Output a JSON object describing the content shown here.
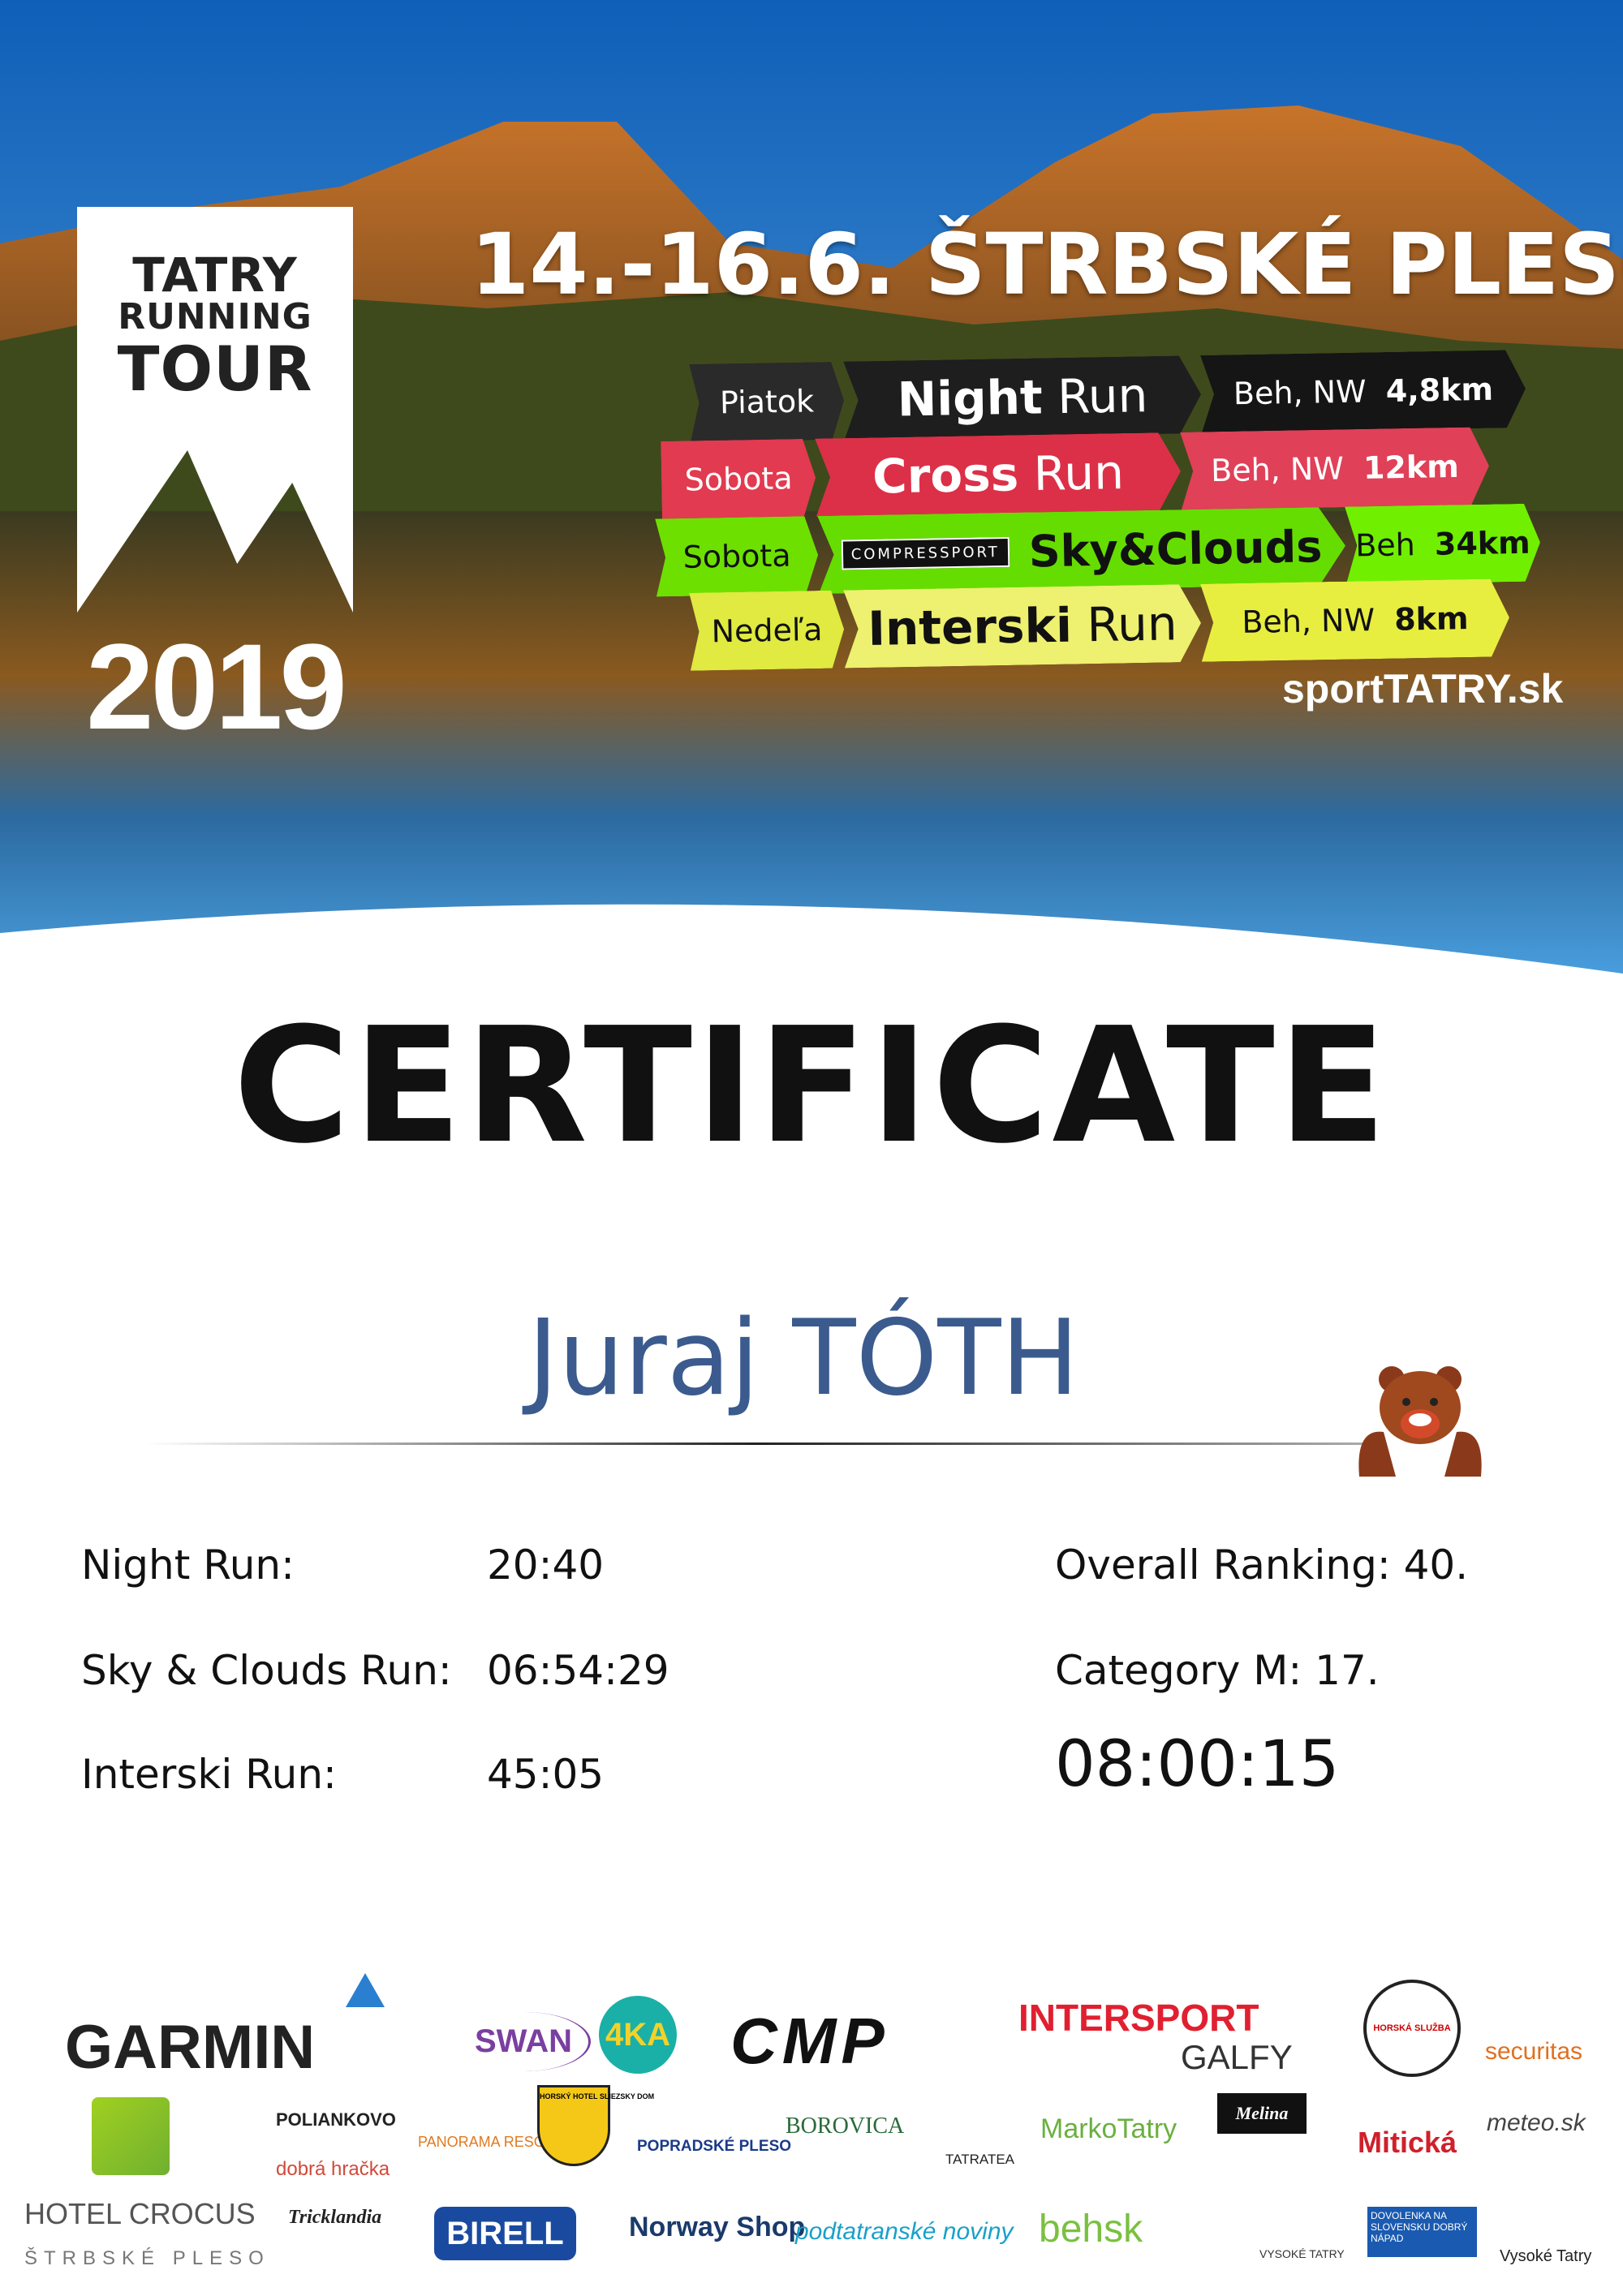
{
  "header": {
    "logo": {
      "line1": "TATRY",
      "line2": "RUNNING",
      "line3": "TOUR",
      "year": "2019"
    },
    "date_location": "14.-16.6.  ŠTRBSKÉ PLESO",
    "website": "sportTATRY.sk",
    "races": [
      {
        "day": "Piatok",
        "name_bold": "Night",
        "name_light": "Run",
        "type": "Beh, NW",
        "distance": "4,8km",
        "color": "#1f1f1f"
      },
      {
        "day": "Sobota",
        "name_bold": "Cross",
        "name_light": "Run",
        "type": "Beh, NW",
        "distance": "12km",
        "color": "#e03048"
      },
      {
        "day": "Sobota",
        "sponsor": "COMPRESSPORT",
        "name_bold": "Sky&Clouds",
        "name_light": "",
        "type": "Beh",
        "distance": "34km",
        "color": "#6ef000"
      },
      {
        "day": "Nedeľa",
        "name_bold": "Interski",
        "name_light": "Run",
        "type": "Beh, NW",
        "distance": "8km",
        "color": "#e8f040"
      }
    ]
  },
  "certificate": {
    "title": "CERTIFICATE",
    "participant": "Juraj TÓTH",
    "results": [
      {
        "label": "Night Run:",
        "time": "20:40"
      },
      {
        "label": "Sky & Clouds Run:",
        "time": "06:54:29"
      },
      {
        "label": "Interski Run:",
        "time": "45:05"
      }
    ],
    "overall_ranking": "Overall Ranking: 40.",
    "category": "Category M: 17.",
    "total_time": "08:00:15"
  },
  "sponsors": [
    "GARMIN",
    "SWAN",
    "4KA",
    "CMP",
    "INTERSPORT",
    "GALFY",
    "HORSKÁ SLUŽBA",
    "securitas",
    "POLIANKOVO",
    "PANORAMA RESORT",
    "HORSKÝ HOTEL SLIEZSKY DOM",
    "POPRADSKÉ PLESO",
    "BOROVICA",
    "TATRATEA",
    "MarkoTatry",
    "Melina",
    "Mitická",
    "meteo.sk",
    "HOTEL CROCUS",
    "ŠTRBSKÉ PLESO",
    "dobrá hračka",
    "Tricklandia",
    "BIRELL",
    "Norway Shop",
    "podtatranské noviny",
    "behsk",
    "VYSOKÉ TATRY",
    "DOVOLENKA NA SLOVENSKU DOBRÝ NÁPAD",
    "Vysoké Tatry"
  ]
}
